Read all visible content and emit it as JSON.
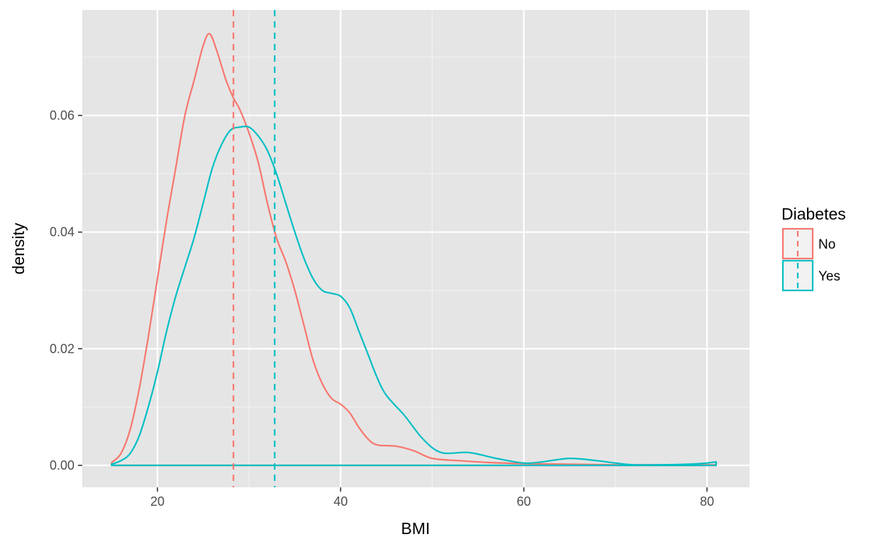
{
  "chart_data": {
    "type": "area",
    "xlabel": "BMI",
    "ylabel": "density",
    "xlim": [
      15,
      81
    ],
    "ylim": [
      0,
      0.075
    ],
    "xticks": [
      20,
      40,
      60,
      80
    ],
    "yticks": [
      0.0,
      0.02,
      0.04,
      0.06
    ],
    "ytick_labels": [
      "0.00",
      "0.02",
      "0.04",
      "0.06"
    ],
    "grid": true,
    "legend": {
      "title": "Diabetes",
      "position": "right"
    },
    "series": [
      {
        "name": "No",
        "color": "#F8766D",
        "mean": 28.3,
        "x": [
          15,
          16,
          17,
          18,
          19,
          20,
          21,
          22,
          23,
          24,
          25,
          25.7,
          26.5,
          27.5,
          28.3,
          29,
          30,
          31,
          32,
          33,
          34,
          35,
          36,
          37,
          38,
          39,
          40,
          41,
          42,
          43,
          44,
          46,
          48,
          50,
          53,
          56,
          60,
          65,
          70,
          75,
          81
        ],
        "y": [
          0.0005,
          0.002,
          0.006,
          0.013,
          0.022,
          0.032,
          0.042,
          0.051,
          0.06,
          0.066,
          0.072,
          0.074,
          0.071,
          0.066,
          0.063,
          0.061,
          0.057,
          0.052,
          0.045,
          0.039,
          0.035,
          0.03,
          0.024,
          0.018,
          0.014,
          0.0115,
          0.0105,
          0.009,
          0.0065,
          0.0045,
          0.0035,
          0.0033,
          0.0025,
          0.0012,
          0.0008,
          0.0005,
          0.0003,
          0.0002,
          0.0001,
          0.0001,
          0.0001
        ]
      },
      {
        "name": "Yes",
        "color": "#00BFC4",
        "mean": 32.8,
        "x": [
          15,
          16,
          17,
          18,
          19,
          20,
          21,
          22,
          23,
          24,
          25,
          26,
          27,
          28,
          29,
          30,
          31,
          32,
          33,
          34,
          35,
          36,
          37,
          38,
          39,
          40,
          41,
          42,
          43,
          44,
          45,
          47,
          49,
          51,
          54,
          57,
          60,
          62,
          65,
          68,
          70,
          72,
          75,
          78,
          80,
          81
        ],
        "y": [
          0.0002,
          0.0008,
          0.002,
          0.005,
          0.01,
          0.016,
          0.023,
          0.029,
          0.034,
          0.039,
          0.045,
          0.051,
          0.055,
          0.0575,
          0.058,
          0.058,
          0.0565,
          0.054,
          0.05,
          0.045,
          0.04,
          0.0355,
          0.032,
          0.03,
          0.0295,
          0.029,
          0.027,
          0.023,
          0.019,
          0.015,
          0.012,
          0.0085,
          0.0045,
          0.0022,
          0.0022,
          0.0012,
          0.0004,
          0.0006,
          0.0012,
          0.0008,
          0.0004,
          0.0001,
          0.0001,
          0.0002,
          0.0004,
          0.0006
        ]
      }
    ]
  }
}
